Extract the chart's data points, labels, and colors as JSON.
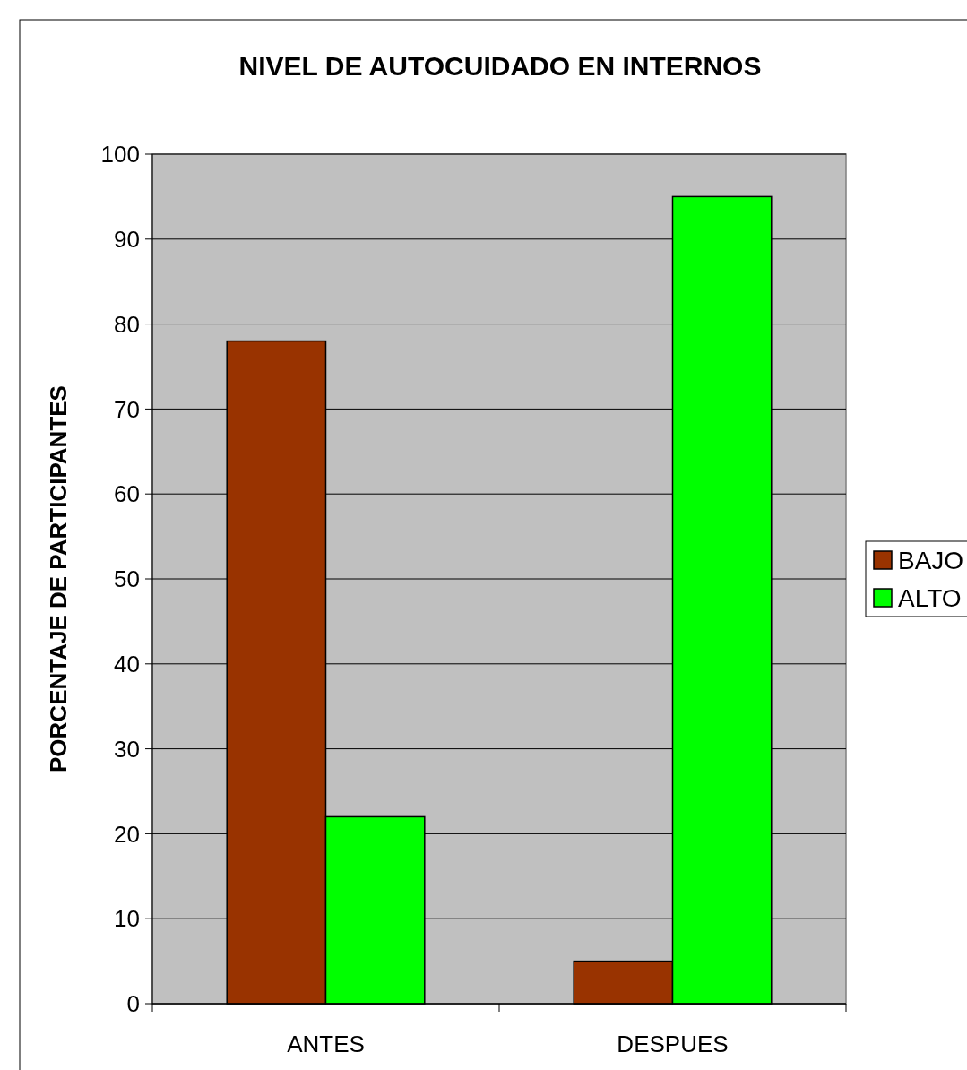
{
  "chart_data": {
    "type": "bar",
    "title": "NIVEL DE AUTOCUIDADO EN INTERNOS",
    "ylabel": "PORCENTAJE DE PARTICIPANTES",
    "categories": [
      "ANTES",
      "DESPUES"
    ],
    "series": [
      {
        "name": "BAJO",
        "color": "#993300",
        "values": [
          78,
          5
        ]
      },
      {
        "name": "ALTO",
        "color": "#00ff00",
        "values": [
          22,
          95
        ]
      }
    ],
    "ylim": [
      0,
      100
    ],
    "yticks": [
      0,
      10,
      20,
      30,
      40,
      50,
      60,
      70,
      80,
      90,
      100
    ],
    "grid": "y",
    "legend": "right"
  }
}
